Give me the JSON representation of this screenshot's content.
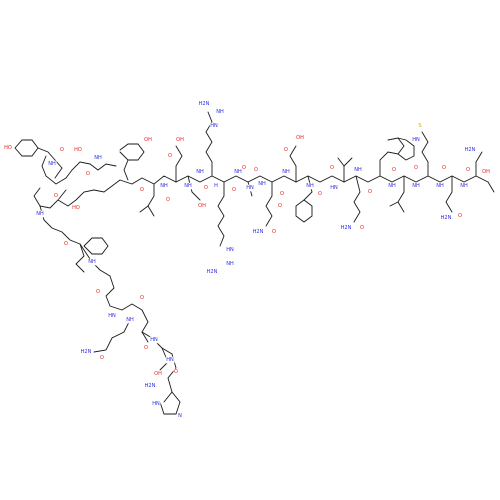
{
  "structure": {
    "colors": {
      "bond": "#1a1a1a",
      "oxygen": "#e8231d",
      "nitrogen": "#2a2ae0",
      "sulfur": "#c8a800",
      "carbon": "#1a1a1a"
    },
    "labels": [
      {
        "id": "ho-tyr1",
        "text": "HO",
        "el": "O"
      },
      {
        "id": "o-1",
        "text": "O",
        "el": "O"
      },
      {
        "id": "ho-ser",
        "text": "HO",
        "el": "O"
      },
      {
        "id": "nh-1",
        "text": "NH",
        "el": "N"
      },
      {
        "id": "o-2",
        "text": "O",
        "el": "O"
      },
      {
        "id": "nh-2",
        "text": "NH",
        "el": "N"
      },
      {
        "id": "oh-tyr2",
        "text": "OH",
        "el": "O"
      },
      {
        "id": "o-3",
        "text": "O",
        "el": "O"
      },
      {
        "id": "oh-asp",
        "text": "OH",
        "el": "O"
      },
      {
        "id": "o-4",
        "text": "O",
        "el": "O"
      },
      {
        "id": "nh-3",
        "text": "NH",
        "el": "N"
      },
      {
        "id": "o-5",
        "text": "O",
        "el": "O"
      },
      {
        "id": "nh-4",
        "text": "NH",
        "el": "N"
      },
      {
        "id": "h2n-arg1",
        "text": "H2N",
        "el": "N"
      },
      {
        "id": "nh-arg1",
        "text": "NH",
        "el": "N"
      },
      {
        "id": "hn-arg1",
        "text": "HN",
        "el": "N"
      },
      {
        "id": "nh-5",
        "text": "NH",
        "el": "N"
      },
      {
        "id": "oh-ser2",
        "text": "OH",
        "el": "O"
      },
      {
        "id": "o-6",
        "text": "O",
        "el": "O"
      },
      {
        "id": "h-1",
        "text": "H",
        "el": "N"
      },
      {
        "id": "nh-6",
        "text": "NH",
        "el": "N"
      },
      {
        "id": "o-7",
        "text": "O",
        "el": "O"
      },
      {
        "id": "hn-2",
        "text": "HN",
        "el": "N"
      },
      {
        "id": "o-8",
        "text": "O",
        "el": "O"
      },
      {
        "id": "nh-7",
        "text": "NH",
        "el": "N"
      },
      {
        "id": "o-9",
        "text": "O",
        "el": "O"
      },
      {
        "id": "hn-3",
        "text": "HN",
        "el": "N"
      },
      {
        "id": "h2n-arg2",
        "text": "H2N",
        "el": "N"
      },
      {
        "id": "nh-arg2",
        "text": "NH",
        "el": "N"
      },
      {
        "id": "o-10",
        "text": "O",
        "el": "O"
      },
      {
        "id": "nh-8",
        "text": "NH",
        "el": "N"
      },
      {
        "id": "o-11",
        "text": "O",
        "el": "O"
      },
      {
        "id": "h2n-gln1",
        "text": "H2N",
        "el": "N"
      },
      {
        "id": "o-12",
        "text": "O",
        "el": "O"
      },
      {
        "id": "oh-asp2",
        "text": "OH",
        "el": "O"
      },
      {
        "id": "o-13",
        "text": "O",
        "el": "O"
      },
      {
        "id": "nh-9",
        "text": "NH",
        "el": "N"
      },
      {
        "id": "o-14",
        "text": "O",
        "el": "O"
      },
      {
        "id": "hn-4",
        "text": "HN",
        "el": "N"
      },
      {
        "id": "o-15",
        "text": "O",
        "el": "O"
      },
      {
        "id": "h2n-gln2",
        "text": "H2N",
        "el": "N"
      },
      {
        "id": "o-16",
        "text": "O",
        "el": "O"
      },
      {
        "id": "nh-10",
        "text": "NH",
        "el": "N"
      },
      {
        "id": "o-17",
        "text": "O",
        "el": "O"
      },
      {
        "id": "hn-trp",
        "text": "HN",
        "el": "N"
      },
      {
        "id": "nh-11",
        "text": "NH",
        "el": "N"
      },
      {
        "id": "o-18",
        "text": "O",
        "el": "O"
      },
      {
        "id": "s-met",
        "text": "S",
        "el": "S"
      },
      {
        "id": "nh-12",
        "text": "NH",
        "el": "N"
      },
      {
        "id": "o-19",
        "text": "O",
        "el": "O"
      },
      {
        "id": "h2n-asn",
        "text": "H2N",
        "el": "N"
      },
      {
        "id": "o-20",
        "text": "O",
        "el": "O"
      },
      {
        "id": "nh-13",
        "text": "NH",
        "el": "N"
      },
      {
        "id": "o-21",
        "text": "O",
        "el": "O"
      },
      {
        "id": "h2n-term",
        "text": "H2N",
        "el": "N"
      },
      {
        "id": "oh-thr",
        "text": "OH",
        "el": "O"
      },
      {
        "id": "o-22",
        "text": "O",
        "el": "O"
      },
      {
        "id": "nh-14",
        "text": "NH",
        "el": "N"
      },
      {
        "id": "o-23",
        "text": "O",
        "el": "O"
      },
      {
        "id": "nh-15",
        "text": "NH",
        "el": "N"
      },
      {
        "id": "ho-thr2",
        "text": "HO",
        "el": "O"
      },
      {
        "id": "o-24",
        "text": "O",
        "el": "O"
      },
      {
        "id": "nh-16",
        "text": "NH",
        "el": "N"
      },
      {
        "id": "o-25",
        "text": "O",
        "el": "O"
      },
      {
        "id": "hn-5",
        "text": "HN",
        "el": "N"
      },
      {
        "id": "o-26",
        "text": "O",
        "el": "O"
      },
      {
        "id": "nh-17",
        "text": "NH",
        "el": "N"
      },
      {
        "id": "h2n-gln3",
        "text": "H2N",
        "el": "N"
      },
      {
        "id": "o-27",
        "text": "O",
        "el": "O"
      },
      {
        "id": "hn-6",
        "text": "HN",
        "el": "N"
      },
      {
        "id": "oh-ser3",
        "text": "OH",
        "el": "O"
      },
      {
        "id": "o-28",
        "text": "O",
        "el": "O"
      },
      {
        "id": "hn-7",
        "text": "HN",
        "el": "N"
      },
      {
        "id": "h2n-his",
        "text": "H2N",
        "el": "N"
      },
      {
        "id": "o-29",
        "text": "O",
        "el": "O"
      },
      {
        "id": "hn-his",
        "text": "HN",
        "el": "N"
      },
      {
        "id": "n-his",
        "text": "N",
        "el": "N"
      }
    ]
  }
}
